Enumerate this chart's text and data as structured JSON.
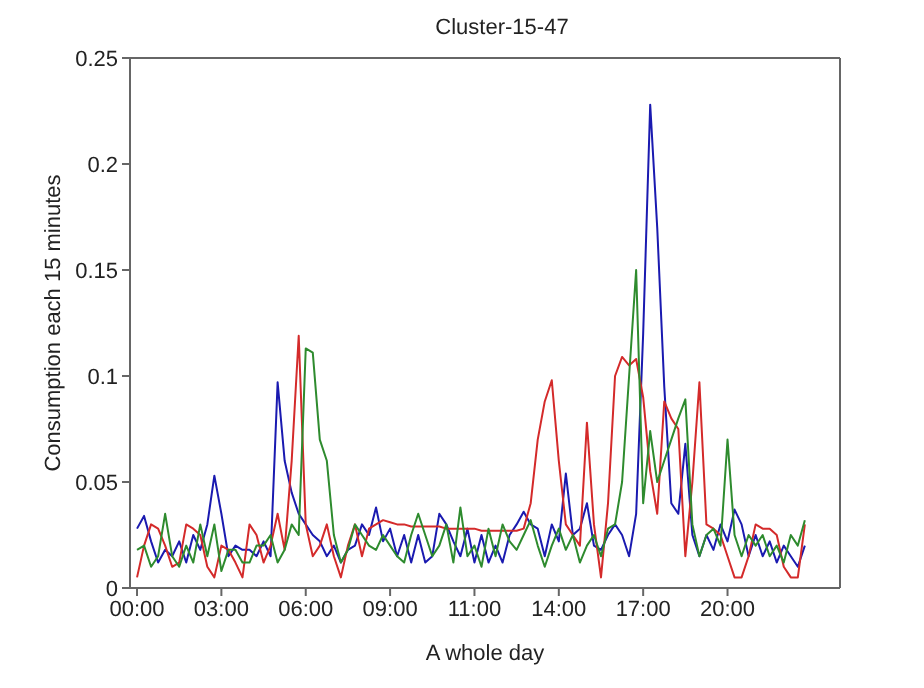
{
  "chart_data": {
    "type": "line",
    "title": "Cluster-15-47",
    "xlabel": "A whole day",
    "ylabel": "Consumption each 15 minutes",
    "categories": [
      "00:00",
      null,
      null,
      null,
      null,
      null,
      null,
      null,
      null,
      null,
      null,
      null,
      "03:00",
      null,
      null,
      null,
      null,
      null,
      null,
      null,
      null,
      null,
      null,
      null,
      "06:00",
      null,
      null,
      null,
      null,
      null,
      null,
      null,
      null,
      null,
      null,
      null,
      "09:00",
      null,
      null,
      null,
      null,
      null,
      null,
      null,
      null,
      null,
      null,
      null,
      "11:00",
      null,
      null,
      null,
      null,
      null,
      null,
      null,
      null,
      null,
      null,
      null,
      "14:00",
      null,
      null,
      null,
      null,
      null,
      null,
      null,
      null,
      null,
      null,
      null,
      "17:00",
      null,
      null,
      null,
      null,
      null,
      null,
      null,
      null,
      null,
      null,
      null,
      "20:00",
      null,
      null,
      null,
      null,
      null,
      null,
      null,
      null,
      null,
      null,
      null
    ],
    "series": [
      {
        "color": "#1a1ab0",
        "values": [
          0.028,
          0.034,
          0.022,
          0.012,
          0.018,
          0.015,
          0.022,
          0.012,
          0.025,
          0.018,
          0.03,
          0.053,
          0.035,
          0.015,
          0.02,
          0.018,
          0.018,
          0.015,
          0.022,
          0.015,
          0.097,
          0.06,
          0.045,
          0.035,
          0.03,
          0.025,
          0.022,
          0.015,
          0.02,
          0.012,
          0.018,
          0.02,
          0.03,
          0.025,
          0.038,
          0.022,
          0.028,
          0.015,
          0.025,
          0.012,
          0.025,
          0.012,
          0.015,
          0.035,
          0.03,
          0.022,
          0.015,
          0.028,
          0.012,
          0.025,
          0.012,
          0.02,
          0.012,
          0.025,
          0.03,
          0.036,
          0.03,
          0.028,
          0.015,
          0.03,
          0.022,
          0.054,
          0.025,
          0.028,
          0.04,
          0.02,
          0.018,
          0.025,
          0.03,
          0.025,
          0.015,
          0.035,
          0.12,
          0.228,
          0.17,
          0.095,
          0.04,
          0.035,
          0.068,
          0.025,
          0.015,
          0.025,
          0.018,
          0.03,
          0.022,
          0.037,
          0.03,
          0.015,
          0.025,
          0.015,
          0.022,
          0.012,
          0.02,
          0.015,
          0.01,
          0.02
        ]
      },
      {
        "color": "#d42a2a",
        "values": [
          0.005,
          0.02,
          0.03,
          0.028,
          0.02,
          0.01,
          0.012,
          0.03,
          0.028,
          0.025,
          0.01,
          0.005,
          0.02,
          0.018,
          0.012,
          0.005,
          0.03,
          0.025,
          0.012,
          0.02,
          0.035,
          0.018,
          0.06,
          0.119,
          0.03,
          0.015,
          0.02,
          0.03,
          0.015,
          0.005,
          0.02,
          0.03,
          0.015,
          0.028,
          0.03,
          0.032,
          0.031,
          0.03,
          0.03,
          0.029,
          0.029,
          0.029,
          0.029,
          0.029,
          0.028,
          0.028,
          0.028,
          0.028,
          0.028,
          0.027,
          0.027,
          0.027,
          0.027,
          0.027,
          0.027,
          0.028,
          0.04,
          0.07,
          0.088,
          0.098,
          0.06,
          0.03,
          0.025,
          0.02,
          0.078,
          0.03,
          0.005,
          0.04,
          0.1,
          0.109,
          0.105,
          0.108,
          0.09,
          0.055,
          0.035,
          0.088,
          0.08,
          0.075,
          0.015,
          0.05,
          0.097,
          0.03,
          0.028,
          0.025,
          0.015,
          0.005,
          0.005,
          0.015,
          0.03,
          0.028,
          0.028,
          0.025,
          0.01,
          0.005,
          0.005,
          0.03
        ]
      },
      {
        "color": "#2e8b2e",
        "values": [
          0.018,
          0.02,
          0.01,
          0.015,
          0.035,
          0.015,
          0.01,
          0.02,
          0.012,
          0.03,
          0.015,
          0.03,
          0.008,
          0.018,
          0.018,
          0.012,
          0.012,
          0.02,
          0.02,
          0.025,
          0.012,
          0.018,
          0.03,
          0.025,
          0.113,
          0.111,
          0.07,
          0.06,
          0.025,
          0.012,
          0.018,
          0.03,
          0.025,
          0.02,
          0.018,
          0.025,
          0.02,
          0.015,
          0.012,
          0.025,
          0.035,
          0.025,
          0.015,
          0.02,
          0.03,
          0.012,
          0.038,
          0.015,
          0.02,
          0.01,
          0.028,
          0.015,
          0.03,
          0.022,
          0.018,
          0.025,
          0.032,
          0.02,
          0.01,
          0.02,
          0.028,
          0.018,
          0.025,
          0.012,
          0.02,
          0.025,
          0.015,
          0.028,
          0.03,
          0.05,
          0.1,
          0.15,
          0.04,
          0.074,
          0.05,
          0.06,
          0.07,
          0.08,
          0.089,
          0.03,
          0.015,
          0.025,
          0.028,
          0.02,
          0.07,
          0.025,
          0.015,
          0.025,
          0.02,
          0.025,
          0.015,
          0.02,
          0.012,
          0.025,
          0.02,
          0.032
        ]
      }
    ],
    "ylim": [
      0,
      0.25
    ],
    "yticks": [
      0,
      0.05,
      0.1,
      0.15,
      0.2,
      0.25
    ],
    "grid": false,
    "legend": false
  }
}
